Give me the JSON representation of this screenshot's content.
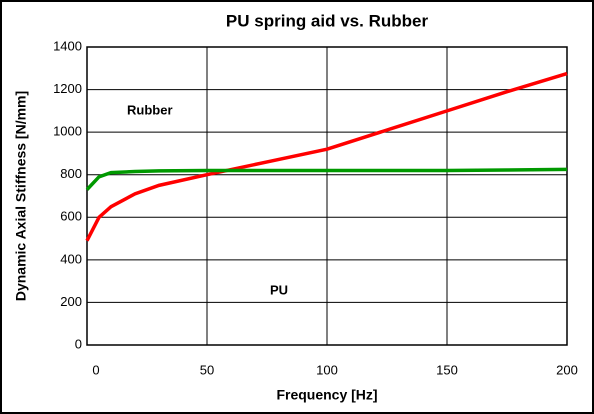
{
  "chart_data": {
    "type": "line",
    "title": "PU spring aid vs. Rubber",
    "x_label": "Frequency [Hz]",
    "y_label": "Dynamic Axial Stiffness [N/mm]",
    "xlim": [
      0,
      200
    ],
    "xticks": [
      0,
      50,
      100,
      150,
      200
    ],
    "ylim": [
      0,
      1400
    ],
    "yticks": [
      0,
      200,
      400,
      600,
      800,
      1000,
      1200,
      1400
    ],
    "grid": true,
    "x": [
      0,
      5,
      10,
      20,
      30,
      50,
      75,
      100,
      125,
      150,
      175,
      200
    ],
    "series": [
      {
        "name": "Rubber",
        "color": "#ff0000",
        "values": [
          490,
          600,
          650,
          710,
          750,
          800,
          860,
          920,
          1010,
          1100,
          1190,
          1275
        ]
      },
      {
        "name": "PU",
        "color": "#009900",
        "values": [
          730,
          790,
          810,
          815,
          818,
          820,
          820,
          820,
          820,
          820,
          822,
          825
        ]
      }
    ]
  }
}
